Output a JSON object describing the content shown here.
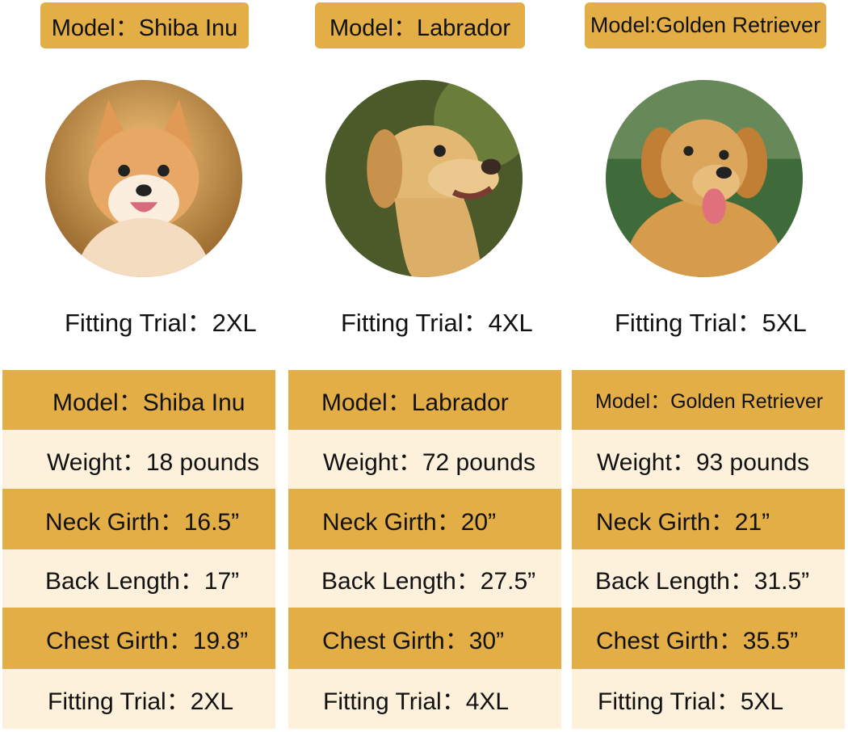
{
  "colors": {
    "gold": "#E2AE45",
    "cream": "#FDF1DC"
  },
  "dogs": [
    {
      "model_tag": "Model：Shiba Inu",
      "photo": "shiba-inu-photo",
      "fitting_trial": "Fitting Trial：2XL",
      "table": {
        "model": "Model：Shiba Inu",
        "weight": "Weight：18 pounds",
        "neck": "Neck Girth：16.5”",
        "back": "Back Length：17”",
        "chest": "Chest Girth：19.8”",
        "fitting": "Fitting Trial：2XL"
      }
    },
    {
      "model_tag": "Model：Labrador",
      "photo": "labrador-photo",
      "fitting_trial": "Fitting Trial：4XL",
      "table": {
        "model": "Model：Labrador",
        "weight": "Weight：72 pounds",
        "neck": "Neck Girth：20”",
        "back": "Back Length：27.5”",
        "chest": "Chest Girth：30”",
        "fitting": "Fitting Trial：4XL"
      }
    },
    {
      "model_tag": "Model:Golden Retriever",
      "photo": "golden-retriever-photo",
      "fitting_trial": "Fitting Trial：5XL",
      "table": {
        "model": "Model：Golden Retriever",
        "weight": "Weight：93 pounds",
        "neck": "Neck Girth：21”",
        "back": "Back Length：31.5”",
        "chest": "Chest Girth：35.5”",
        "fitting": "Fitting Trial：5XL"
      }
    }
  ]
}
